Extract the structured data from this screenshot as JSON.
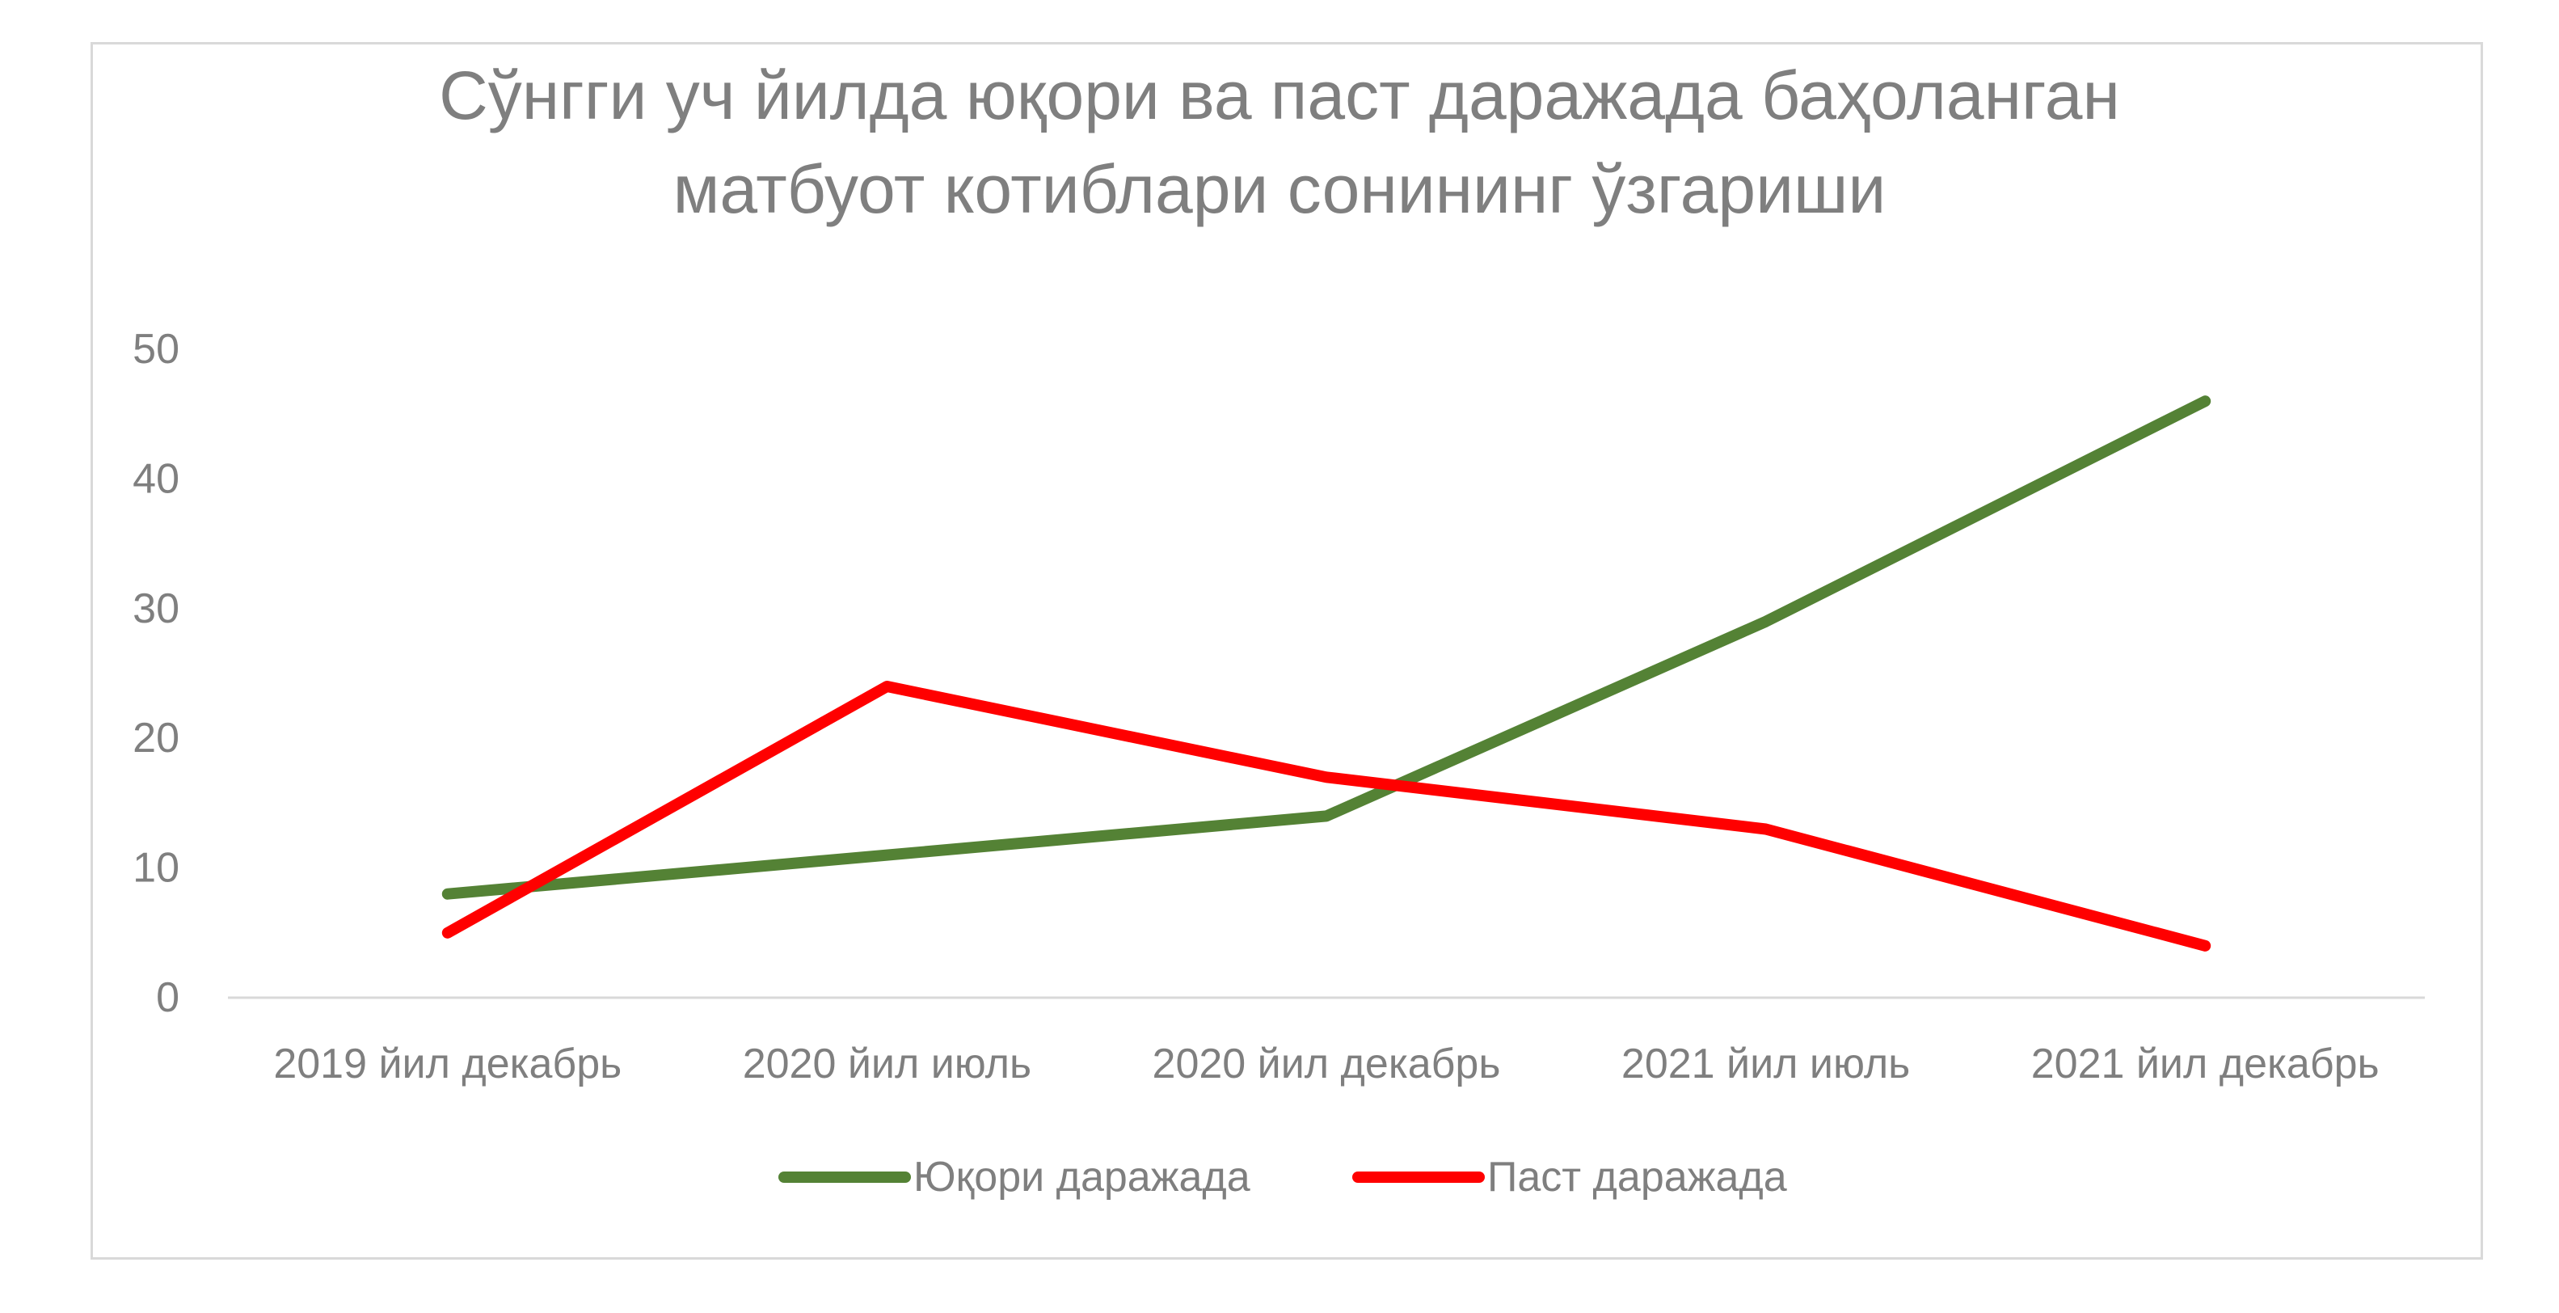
{
  "chart_data": {
    "type": "line",
    "title": [
      "Сўнгги уч йилда юқори ва паст даражада баҳоланган",
      "матбуот котиблари сонининг ўзгариши"
    ],
    "categories": [
      "2019 йил декабрь",
      "2020 йил июль",
      "2020 йил декабрь",
      "2021 йил июль",
      "2021 йил декабрь"
    ],
    "series": [
      {
        "name": "Юқори даражада",
        "color": "#548235",
        "values": [
          8,
          11,
          14,
          29,
          46
        ]
      },
      {
        "name": "Паст даражада",
        "color": "#ff0000",
        "values": [
          5,
          24,
          17,
          13,
          4
        ]
      }
    ],
    "ylim": [
      0,
      50
    ],
    "yticks": [
      "0",
      "10",
      "20",
      "30",
      "40",
      "50"
    ],
    "grid": false,
    "legend_position": "bottom",
    "text_color": "#7f7f7f",
    "axis_color": "#d9d9d9"
  }
}
